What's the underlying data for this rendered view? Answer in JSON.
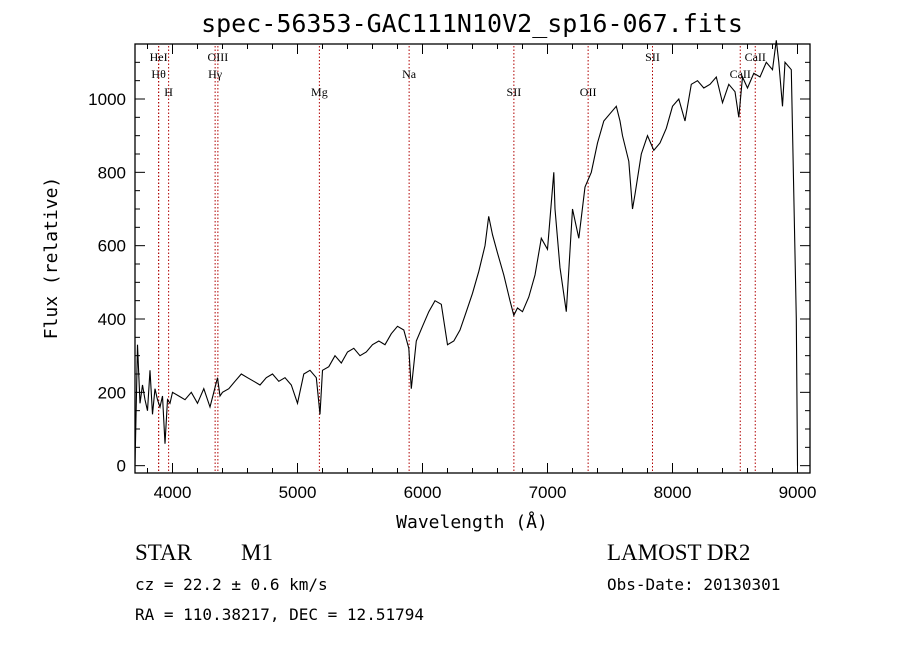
{
  "chart_data": {
    "type": "line",
    "title": "spec-56353-GAC111N10V2_sp16-067.fits",
    "xlabel": "Wavelength (Å)",
    "ylabel": "Flux (relative)",
    "xlim": [
      3700,
      9100
    ],
    "ylim": [
      -20,
      1150
    ],
    "xticks": [
      4000,
      5000,
      6000,
      7000,
      8000,
      9000
    ],
    "yticks": [
      0,
      200,
      400,
      600,
      800,
      1000
    ],
    "grid": false,
    "series": [
      {
        "x": [
          3700,
          3720,
          3740,
          3760,
          3780,
          3800,
          3820,
          3840,
          3860,
          3880,
          3900,
          3920,
          3940,
          3960,
          3980,
          4000,
          4050,
          4100,
          4150,
          4200,
          4250,
          4300,
          4330,
          4360,
          4380,
          4400,
          4450,
          4500,
          4550,
          4600,
          4650,
          4700,
          4750,
          4800,
          4850,
          4900,
          4950,
          5000,
          5050,
          5100,
          5150,
          5180,
          5200,
          5250,
          5300,
          5350,
          5400,
          5450,
          5500,
          5550,
          5600,
          5650,
          5700,
          5750,
          5800,
          5850,
          5890,
          5910,
          5950,
          6000,
          6050,
          6100,
          6150,
          6200,
          6250,
          6300,
          6350,
          6400,
          6450,
          6500,
          6530,
          6560,
          6600,
          6650,
          6700,
          6730,
          6760,
          6800,
          6850,
          6900,
          6950,
          7000,
          7050,
          7060,
          7100,
          7150,
          7200,
          7250,
          7300,
          7350,
          7400,
          7450,
          7500,
          7550,
          7580,
          7600,
          7650,
          7680,
          7700,
          7750,
          7800,
          7850,
          7900,
          7950,
          8000,
          8050,
          8100,
          8150,
          8200,
          8250,
          8300,
          8350,
          8400,
          8450,
          8500,
          8530,
          8560,
          8600,
          8650,
          8700,
          8750,
          8800,
          8830,
          8850,
          8880,
          8900,
          8950,
          8990,
          9000
        ],
        "y": [
          0,
          330,
          170,
          220,
          180,
          150,
          260,
          140,
          210,
          180,
          160,
          190,
          60,
          180,
          170,
          200,
          190,
          180,
          200,
          170,
          210,
          160,
          200,
          240,
          190,
          200,
          210,
          230,
          250,
          240,
          230,
          220,
          240,
          250,
          230,
          240,
          220,
          170,
          250,
          260,
          240,
          140,
          260,
          270,
          300,
          280,
          310,
          320,
          300,
          310,
          330,
          340,
          330,
          360,
          380,
          370,
          320,
          210,
          340,
          380,
          420,
          450,
          440,
          330,
          340,
          370,
          420,
          470,
          530,
          600,
          680,
          630,
          580,
          520,
          450,
          410,
          430,
          420,
          460,
          520,
          620,
          590,
          800,
          700,
          540,
          420,
          700,
          620,
          760,
          800,
          880,
          940,
          960,
          980,
          940,
          900,
          830,
          700,
          740,
          850,
          900,
          860,
          880,
          920,
          980,
          1000,
          940,
          1040,
          1050,
          1030,
          1040,
          1060,
          990,
          1040,
          1020,
          950,
          1060,
          1030,
          1070,
          1060,
          1100,
          1080,
          1160,
          1100,
          980,
          1100,
          1080,
          400,
          0
        ]
      }
    ],
    "annotations": [
      {
        "label": "Hθ",
        "x": 3889,
        "row": 2
      },
      {
        "label": "HeI",
        "x": 3889,
        "row": 1
      },
      {
        "label": "H",
        "x": 3969,
        "row": 3
      },
      {
        "label": "OIII",
        "x": 4363,
        "row": 1
      },
      {
        "label": "Hγ",
        "x": 4341,
        "row": 2
      },
      {
        "label": "Mg",
        "x": 5175,
        "row": 3
      },
      {
        "label": "Na",
        "x": 5893,
        "row": 2
      },
      {
        "label": "SII",
        "x": 6731,
        "row": 3
      },
      {
        "label": "OII",
        "x": 7325,
        "row": 3
      },
      {
        "label": "SII",
        "x": 7840,
        "row": 1
      },
      {
        "label": "CaII",
        "x": 8542,
        "row": 2
      },
      {
        "label": "CaII",
        "x": 8662,
        "row": 1
      }
    ],
    "annotation_line_color": "#b00000"
  },
  "info": {
    "class_label": "STAR",
    "subclass_label": "M1",
    "survey": "LAMOST DR2",
    "cz_text": "cz = 22.2 ± 0.6 km/s",
    "obsdate_text": "Obs-Date: 20130301",
    "coords_text": "RA = 110.38217, DEC =  12.51794"
  }
}
